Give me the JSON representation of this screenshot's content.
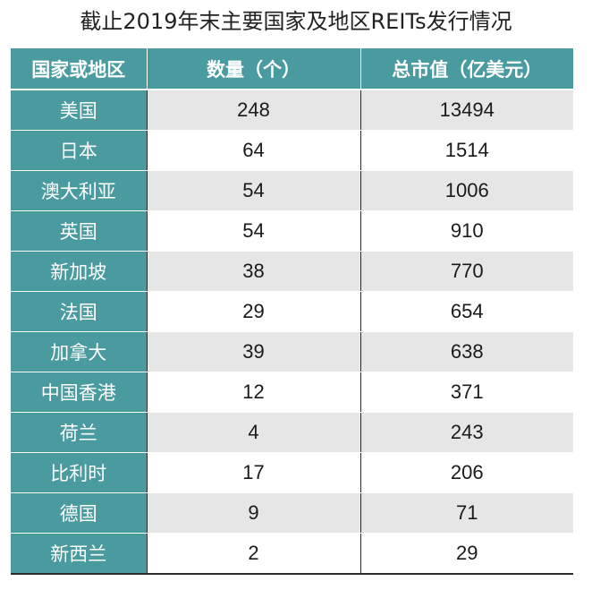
{
  "title": "截止2019年末主要国家及地区REITs发行情况",
  "table": {
    "headers": [
      "国家或地区",
      "数量（个）",
      "总市值（亿美元）"
    ],
    "rows": [
      {
        "country": "美国",
        "count": "248",
        "market_cap": "13494"
      },
      {
        "country": "日本",
        "count": "64",
        "market_cap": "1514"
      },
      {
        "country": "澳大利亚",
        "count": "54",
        "market_cap": "1006"
      },
      {
        "country": "英国",
        "count": "54",
        "market_cap": "910"
      },
      {
        "country": "新加坡",
        "count": "38",
        "market_cap": "770"
      },
      {
        "country": "法国",
        "count": "29",
        "market_cap": "654"
      },
      {
        "country": "加拿大",
        "count": "39",
        "market_cap": "638"
      },
      {
        "country": "中国香港",
        "count": "12",
        "market_cap": "371"
      },
      {
        "country": "荷兰",
        "count": "4",
        "market_cap": "243"
      },
      {
        "country": "比利时",
        "count": "17",
        "market_cap": "206"
      },
      {
        "country": "德国",
        "count": "9",
        "market_cap": "71"
      },
      {
        "country": "新西兰",
        "count": "2",
        "market_cap": "29"
      }
    ]
  },
  "colors": {
    "header_bg": "#4a9ba0",
    "row_shade": "#e6e6e6",
    "border": "#2c2c2c"
  }
}
